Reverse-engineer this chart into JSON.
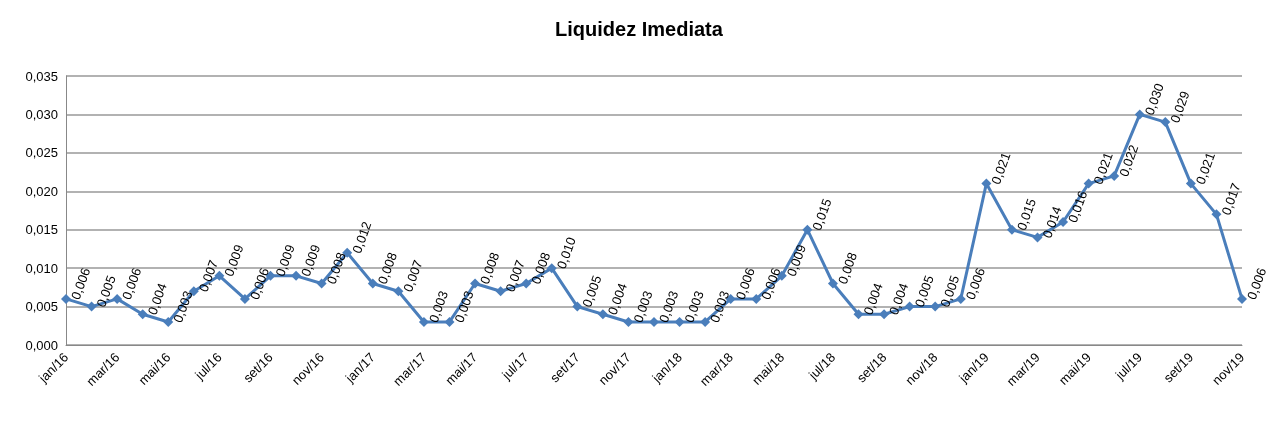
{
  "chart_data": {
    "type": "line",
    "title": "Liquidez Imediata",
    "categories": [
      "jan/16",
      null,
      "mar/16",
      null,
      "mai/16",
      null,
      "jul/16",
      null,
      "set/16",
      null,
      "nov/16",
      null,
      "jan/17",
      null,
      "mar/17",
      null,
      "mai/17",
      null,
      "jul/17",
      null,
      "set/17",
      null,
      "nov/17",
      null,
      "jan/18",
      null,
      "mar/18",
      null,
      "mai/18",
      null,
      "jul/18",
      null,
      "set/18",
      null,
      "nov/18",
      null,
      "jan/19",
      null,
      "mar/19",
      null,
      "mai/19",
      null,
      "jul/19",
      null,
      "set/19",
      null,
      "nov/19"
    ],
    "series": [
      {
        "color": "#4a7ebb",
        "values": [
          0.006,
          0.005,
          0.006,
          0.004,
          0.003,
          0.007,
          0.009,
          0.006,
          0.009,
          0.009,
          0.008,
          0.012,
          0.008,
          0.007,
          0.003,
          0.003,
          0.008,
          0.007,
          0.008,
          0.01,
          0.005,
          0.004,
          0.003,
          0.003,
          0.003,
          0.003,
          0.006,
          0.006,
          0.009,
          0.015,
          0.008,
          0.004,
          0.004,
          0.005,
          0.005,
          0.006,
          0.021,
          0.015,
          0.014,
          0.016,
          0.021,
          0.022,
          0.03,
          0.029,
          0.021,
          0.017,
          0.006
        ],
        "value_labels": [
          "0,006",
          "0,005",
          "0,006",
          "0,004",
          "0,003",
          "0,007",
          "0,009",
          "0,006",
          "0,009",
          "0,009",
          "0,008",
          "0,012",
          "0,008",
          "0,007",
          "0,003",
          "0,003",
          "0,008",
          "0,007",
          "0,008",
          "0,010",
          "0,005",
          "0,004",
          "0,003",
          "0,003",
          "0,003",
          "0,003",
          "0,006",
          "0,006",
          "0,009",
          "0,015",
          "0,008",
          "0,004",
          "0,004",
          "0,005",
          "0,005",
          "0,006",
          "0,021",
          "0,015",
          "0,014",
          "0,016",
          "0,021",
          "0,022",
          "0,030",
          "0,029",
          "0,021",
          "0,017",
          "0,006"
        ]
      }
    ],
    "ylim": [
      0,
      0.035
    ],
    "yticks": [
      {
        "value": 0,
        "label": "0,000"
      },
      {
        "value": 0.005,
        "label": "0,005"
      },
      {
        "value": 0.01,
        "label": "0,010"
      },
      {
        "value": 0.015,
        "label": "0,015"
      },
      {
        "value": 0.02,
        "label": "0,020"
      },
      {
        "value": 0.025,
        "label": "0,025"
      },
      {
        "value": 0.03,
        "label": "0,030"
      },
      {
        "value": 0.035,
        "label": "0,035"
      }
    ],
    "grid": "y",
    "marker": "diamond",
    "line_style": "solid"
  }
}
